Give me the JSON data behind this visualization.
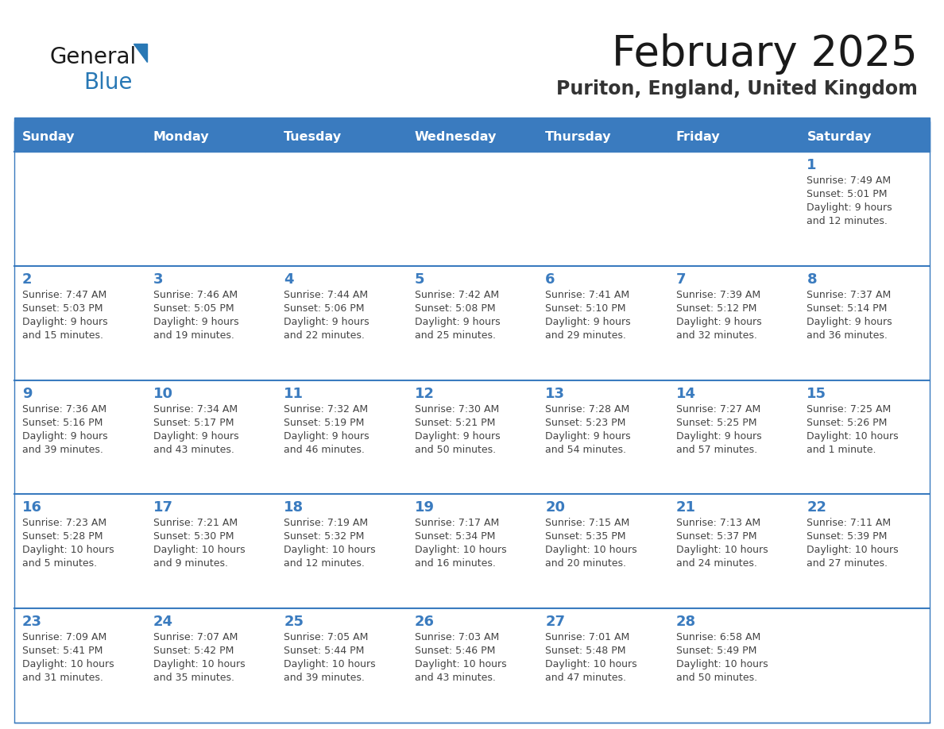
{
  "title": "February 2025",
  "subtitle": "Puriton, England, United Kingdom",
  "header_bg_color": "#3a7bbf",
  "header_text_color": "#ffffff",
  "cell_bg_color": "#ffffff",
  "alt_cell_bg_color": "#f0f4f8",
  "cell_text_color": "#444444",
  "day_number_color": "#3a7bbf",
  "border_color": "#3a7bbf",
  "separator_color": "#3a7bbf",
  "days_of_week": [
    "Sunday",
    "Monday",
    "Tuesday",
    "Wednesday",
    "Thursday",
    "Friday",
    "Saturday"
  ],
  "weeks": [
    [
      {
        "day": null,
        "info": null
      },
      {
        "day": null,
        "info": null
      },
      {
        "day": null,
        "info": null
      },
      {
        "day": null,
        "info": null
      },
      {
        "day": null,
        "info": null
      },
      {
        "day": null,
        "info": null
      },
      {
        "day": 1,
        "info": "Sunrise: 7:49 AM\nSunset: 5:01 PM\nDaylight: 9 hours\nand 12 minutes."
      }
    ],
    [
      {
        "day": 2,
        "info": "Sunrise: 7:47 AM\nSunset: 5:03 PM\nDaylight: 9 hours\nand 15 minutes."
      },
      {
        "day": 3,
        "info": "Sunrise: 7:46 AM\nSunset: 5:05 PM\nDaylight: 9 hours\nand 19 minutes."
      },
      {
        "day": 4,
        "info": "Sunrise: 7:44 AM\nSunset: 5:06 PM\nDaylight: 9 hours\nand 22 minutes."
      },
      {
        "day": 5,
        "info": "Sunrise: 7:42 AM\nSunset: 5:08 PM\nDaylight: 9 hours\nand 25 minutes."
      },
      {
        "day": 6,
        "info": "Sunrise: 7:41 AM\nSunset: 5:10 PM\nDaylight: 9 hours\nand 29 minutes."
      },
      {
        "day": 7,
        "info": "Sunrise: 7:39 AM\nSunset: 5:12 PM\nDaylight: 9 hours\nand 32 minutes."
      },
      {
        "day": 8,
        "info": "Sunrise: 7:37 AM\nSunset: 5:14 PM\nDaylight: 9 hours\nand 36 minutes."
      }
    ],
    [
      {
        "day": 9,
        "info": "Sunrise: 7:36 AM\nSunset: 5:16 PM\nDaylight: 9 hours\nand 39 minutes."
      },
      {
        "day": 10,
        "info": "Sunrise: 7:34 AM\nSunset: 5:17 PM\nDaylight: 9 hours\nand 43 minutes."
      },
      {
        "day": 11,
        "info": "Sunrise: 7:32 AM\nSunset: 5:19 PM\nDaylight: 9 hours\nand 46 minutes."
      },
      {
        "day": 12,
        "info": "Sunrise: 7:30 AM\nSunset: 5:21 PM\nDaylight: 9 hours\nand 50 minutes."
      },
      {
        "day": 13,
        "info": "Sunrise: 7:28 AM\nSunset: 5:23 PM\nDaylight: 9 hours\nand 54 minutes."
      },
      {
        "day": 14,
        "info": "Sunrise: 7:27 AM\nSunset: 5:25 PM\nDaylight: 9 hours\nand 57 minutes."
      },
      {
        "day": 15,
        "info": "Sunrise: 7:25 AM\nSunset: 5:26 PM\nDaylight: 10 hours\nand 1 minute."
      }
    ],
    [
      {
        "day": 16,
        "info": "Sunrise: 7:23 AM\nSunset: 5:28 PM\nDaylight: 10 hours\nand 5 minutes."
      },
      {
        "day": 17,
        "info": "Sunrise: 7:21 AM\nSunset: 5:30 PM\nDaylight: 10 hours\nand 9 minutes."
      },
      {
        "day": 18,
        "info": "Sunrise: 7:19 AM\nSunset: 5:32 PM\nDaylight: 10 hours\nand 12 minutes."
      },
      {
        "day": 19,
        "info": "Sunrise: 7:17 AM\nSunset: 5:34 PM\nDaylight: 10 hours\nand 16 minutes."
      },
      {
        "day": 20,
        "info": "Sunrise: 7:15 AM\nSunset: 5:35 PM\nDaylight: 10 hours\nand 20 minutes."
      },
      {
        "day": 21,
        "info": "Sunrise: 7:13 AM\nSunset: 5:37 PM\nDaylight: 10 hours\nand 24 minutes."
      },
      {
        "day": 22,
        "info": "Sunrise: 7:11 AM\nSunset: 5:39 PM\nDaylight: 10 hours\nand 27 minutes."
      }
    ],
    [
      {
        "day": 23,
        "info": "Sunrise: 7:09 AM\nSunset: 5:41 PM\nDaylight: 10 hours\nand 31 minutes."
      },
      {
        "day": 24,
        "info": "Sunrise: 7:07 AM\nSunset: 5:42 PM\nDaylight: 10 hours\nand 35 minutes."
      },
      {
        "day": 25,
        "info": "Sunrise: 7:05 AM\nSunset: 5:44 PM\nDaylight: 10 hours\nand 39 minutes."
      },
      {
        "day": 26,
        "info": "Sunrise: 7:03 AM\nSunset: 5:46 PM\nDaylight: 10 hours\nand 43 minutes."
      },
      {
        "day": 27,
        "info": "Sunrise: 7:01 AM\nSunset: 5:48 PM\nDaylight: 10 hours\nand 47 minutes."
      },
      {
        "day": 28,
        "info": "Sunrise: 6:58 AM\nSunset: 5:49 PM\nDaylight: 10 hours\nand 50 minutes."
      },
      {
        "day": null,
        "info": null
      }
    ]
  ],
  "logo_general_color": "#1a1a1a",
  "logo_blue_color": "#2878b5",
  "logo_triangle_color": "#2878b5",
  "title_color": "#1a1a1a",
  "subtitle_color": "#333333"
}
